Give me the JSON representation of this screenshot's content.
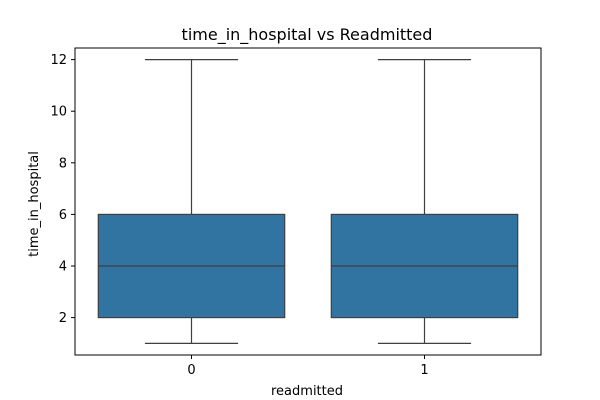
{
  "chart_data": {
    "type": "box",
    "title": "time_in_hospital vs Readmitted",
    "xlabel": "readmitted",
    "ylabel": "time_in_hospital",
    "categories": [
      "0",
      "1"
    ],
    "boxes": [
      {
        "category": "0",
        "whisker_low": 1,
        "q1": 2,
        "median": 4,
        "q3": 6,
        "whisker_high": 12
      },
      {
        "category": "1",
        "whisker_low": 1,
        "q1": 2,
        "median": 4,
        "q3": 6,
        "whisker_high": 12
      }
    ],
    "ylim": [
      0.55,
      12.45
    ],
    "yticks": [
      2,
      4,
      6,
      8,
      10,
      12
    ],
    "grid": false,
    "box_color": "#3274a1",
    "line_color": "#3f3f3f"
  }
}
